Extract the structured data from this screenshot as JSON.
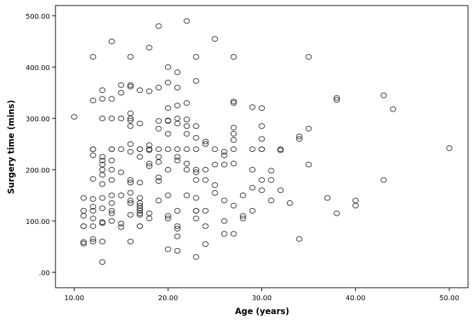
{
  "chart_data": {
    "type": "scatter",
    "title": "",
    "xlabel": "Age (years)",
    "ylabel": "Surgery time (mins)",
    "xlim": [
      8,
      52
    ],
    "ylim": [
      -30,
      520
    ],
    "xticks": [
      10,
      20,
      30,
      40,
      50
    ],
    "yticks": [
      0,
      100,
      200,
      300,
      400,
      500
    ],
    "xtick_labels": [
      "10.00",
      "20.00",
      "30.00",
      "40.00",
      "50.00"
    ],
    "ytick_labels": [
      ".00",
      "100.00",
      "200.00",
      "300.00",
      "400.00",
      "500.00"
    ],
    "grid": false,
    "legend": "none",
    "marker": "open-circle",
    "colors": {
      "marker": "#333333",
      "axis": "#000000",
      "plot_bg": "#ffffff"
    },
    "points": [
      [
        10,
        303
      ],
      [
        11,
        90
      ],
      [
        11,
        145
      ],
      [
        11,
        120
      ],
      [
        11,
        110
      ],
      [
        11,
        90
      ],
      [
        11,
        59
      ],
      [
        11,
        56
      ],
      [
        12,
        420
      ],
      [
        12,
        335
      ],
      [
        12,
        240
      ],
      [
        12,
        240
      ],
      [
        12,
        228
      ],
      [
        12,
        182
      ],
      [
        12,
        143
      ],
      [
        12,
        128
      ],
      [
        12,
        120
      ],
      [
        12,
        105
      ],
      [
        12,
        90
      ],
      [
        12,
        65
      ],
      [
        12,
        60
      ],
      [
        13,
        355
      ],
      [
        13,
        338
      ],
      [
        13,
        300
      ],
      [
        13,
        225
      ],
      [
        13,
        218
      ],
      [
        13,
        210
      ],
      [
        13,
        200
      ],
      [
        13,
        190
      ],
      [
        13,
        172
      ],
      [
        13,
        145
      ],
      [
        13,
        125
      ],
      [
        13,
        98
      ],
      [
        13,
        96
      ],
      [
        13,
        60
      ],
      [
        13,
        20
      ],
      [
        14,
        450
      ],
      [
        14,
        338
      ],
      [
        14,
        300
      ],
      [
        14,
        240
      ],
      [
        14,
        240
      ],
      [
        14,
        218
      ],
      [
        14,
        200
      ],
      [
        14,
        180
      ],
      [
        14,
        150
      ],
      [
        14,
        135
      ],
      [
        14,
        120
      ],
      [
        14,
        115
      ],
      [
        14,
        100
      ],
      [
        15,
        365
      ],
      [
        15,
        350
      ],
      [
        15,
        300
      ],
      [
        15,
        240
      ],
      [
        15,
        195
      ],
      [
        15,
        150
      ],
      [
        15,
        95
      ],
      [
        15,
        88
      ],
      [
        16,
        420
      ],
      [
        16,
        365
      ],
      [
        16,
        362
      ],
      [
        16,
        310
      ],
      [
        16,
        300
      ],
      [
        16,
        296
      ],
      [
        16,
        285
      ],
      [
        16,
        250
      ],
      [
        16,
        235
      ],
      [
        16,
        180
      ],
      [
        16,
        175
      ],
      [
        16,
        155
      ],
      [
        16,
        140
      ],
      [
        16,
        135
      ],
      [
        16,
        112
      ],
      [
        16,
        60
      ],
      [
        17,
        355
      ],
      [
        17,
        290
      ],
      [
        17,
        240
      ],
      [
        17,
        240
      ],
      [
        17,
        225
      ],
      [
        17,
        175
      ],
      [
        17,
        145
      ],
      [
        17,
        135
      ],
      [
        17,
        130
      ],
      [
        17,
        125
      ],
      [
        17,
        120
      ],
      [
        17,
        115
      ],
      [
        17,
        112
      ],
      [
        17,
        90
      ],
      [
        17,
        90
      ],
      [
        18,
        438
      ],
      [
        18,
        353
      ],
      [
        18,
        248
      ],
      [
        18,
        240
      ],
      [
        18,
        238
      ],
      [
        18,
        212
      ],
      [
        18,
        207
      ],
      [
        18,
        115
      ],
      [
        18,
        105
      ],
      [
        19,
        480
      ],
      [
        19,
        360
      ],
      [
        19,
        295
      ],
      [
        19,
        280
      ],
      [
        19,
        240
      ],
      [
        19,
        225
      ],
      [
        19,
        215
      ],
      [
        19,
        185
      ],
      [
        19,
        178
      ],
      [
        19,
        140
      ],
      [
        20,
        400
      ],
      [
        20,
        370
      ],
      [
        20,
        320
      ],
      [
        20,
        296
      ],
      [
        20,
        295
      ],
      [
        20,
        270
      ],
      [
        20,
        240
      ],
      [
        20,
        200
      ],
      [
        20,
        150
      ],
      [
        20,
        110
      ],
      [
        20,
        105
      ],
      [
        20,
        45
      ],
      [
        21,
        390
      ],
      [
        21,
        360
      ],
      [
        21,
        325
      ],
      [
        21,
        300
      ],
      [
        21,
        290
      ],
      [
        21,
        240
      ],
      [
        21,
        225
      ],
      [
        21,
        218
      ],
      [
        21,
        120
      ],
      [
        21,
        90
      ],
      [
        21,
        85
      ],
      [
        21,
        70
      ],
      [
        21,
        42
      ],
      [
        22,
        490
      ],
      [
        22,
        330
      ],
      [
        22,
        298
      ],
      [
        22,
        285
      ],
      [
        22,
        270
      ],
      [
        22,
        240
      ],
      [
        22,
        212
      ],
      [
        22,
        200
      ],
      [
        22,
        150
      ],
      [
        23,
        420
      ],
      [
        23,
        373
      ],
      [
        23,
        285
      ],
      [
        23,
        262
      ],
      [
        23,
        240
      ],
      [
        23,
        200
      ],
      [
        23,
        195
      ],
      [
        23,
        180
      ],
      [
        23,
        145
      ],
      [
        23,
        120
      ],
      [
        23,
        120
      ],
      [
        23,
        105
      ],
      [
        23,
        30
      ],
      [
        24,
        255
      ],
      [
        24,
        250
      ],
      [
        24,
        200
      ],
      [
        24,
        180
      ],
      [
        24,
        120
      ],
      [
        24,
        90
      ],
      [
        24,
        55
      ],
      [
        25,
        455
      ],
      [
        25,
        240
      ],
      [
        25,
        210
      ],
      [
        25,
        170
      ],
      [
        25,
        155
      ],
      [
        26,
        235
      ],
      [
        26,
        228
      ],
      [
        26,
        210
      ],
      [
        26,
        140
      ],
      [
        26,
        100
      ],
      [
        26,
        75
      ],
      [
        27,
        420
      ],
      [
        27,
        333
      ],
      [
        27,
        330
      ],
      [
        27,
        282
      ],
      [
        27,
        270
      ],
      [
        27,
        258
      ],
      [
        27,
        240
      ],
      [
        27,
        212
      ],
      [
        27,
        130
      ],
      [
        27,
        75
      ],
      [
        28,
        150
      ],
      [
        28,
        110
      ],
      [
        28,
        105
      ],
      [
        29,
        322
      ],
      [
        29,
        240
      ],
      [
        29,
        200
      ],
      [
        29,
        165
      ],
      [
        29,
        120
      ],
      [
        30,
        320
      ],
      [
        30,
        285
      ],
      [
        30,
        260
      ],
      [
        30,
        240
      ],
      [
        30,
        240
      ],
      [
        30,
        180
      ],
      [
        30,
        160
      ],
      [
        31,
        198
      ],
      [
        31,
        180
      ],
      [
        31,
        140
      ],
      [
        32,
        240
      ],
      [
        32,
        238
      ],
      [
        32,
        160
      ],
      [
        33,
        135
      ],
      [
        34,
        265
      ],
      [
        34,
        260
      ],
      [
        34,
        65
      ],
      [
        35,
        420
      ],
      [
        35,
        280
      ],
      [
        35,
        210
      ],
      [
        37,
        145
      ],
      [
        38,
        340
      ],
      [
        38,
        336
      ],
      [
        38,
        115
      ],
      [
        40,
        140
      ],
      [
        40,
        130
      ],
      [
        43,
        345
      ],
      [
        43,
        180
      ],
      [
        44,
        318
      ],
      [
        50,
        242
      ]
    ]
  }
}
